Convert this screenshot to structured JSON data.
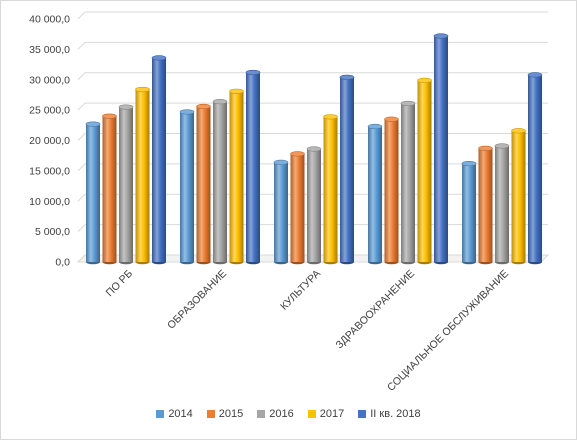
{
  "chart_data": {
    "type": "bar",
    "style": "3d-cylinder",
    "categories": [
      "ПО РБ",
      "ОБРАЗОВАНИЕ",
      "КУЛЬТУРА",
      "ЗДРАВООХРАНЕНИЕ",
      "СОЦИАЛЬНОЕ ОБСЛУЖИВАНИЕ"
    ],
    "series": [
      {
        "name": "2014",
        "color": "#5b9bd5",
        "values": [
          22700,
          24700,
          16400,
          22300,
          16200
        ]
      },
      {
        "name": "2015",
        "color": "#ed7d31",
        "values": [
          24000,
          25600,
          17800,
          23500,
          18700
        ]
      },
      {
        "name": "2016",
        "color": "#a5a5a5",
        "values": [
          25500,
          26400,
          18600,
          26100,
          19100
        ]
      },
      {
        "name": "2017",
        "color": "#ffc000",
        "values": [
          28400,
          28100,
          23900,
          29900,
          21600
        ]
      },
      {
        "name": "II кв. 2018",
        "color": "#4472c4",
        "values": [
          33600,
          31200,
          30400,
          37200,
          30800
        ]
      }
    ],
    "ylim": [
      0,
      40000
    ],
    "yticks": [
      "0,0",
      "5 000,0",
      "10 000,0",
      "15 000,0",
      "20 000,0",
      "25 000,0",
      "30 000,0",
      "35 000,0",
      "40 000,0"
    ],
    "grid": true,
    "legend": "bottom",
    "title": "",
    "xlabel": "",
    "ylabel": ""
  }
}
